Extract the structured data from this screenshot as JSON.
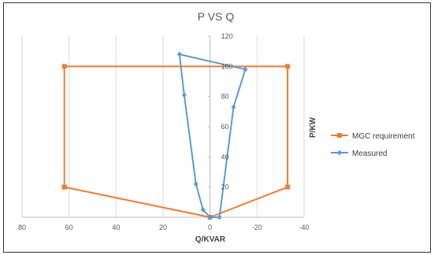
{
  "chart_data": {
    "type": "scatter",
    "title": "P VS Q",
    "xlabel": "Q/KVAR",
    "ylabel": "P/KW",
    "x_reversed": true,
    "xlim": [
      80,
      -40
    ],
    "ylim": [
      0,
      120
    ],
    "x_ticks": [
      80,
      60,
      40,
      20,
      0,
      -20,
      -40
    ],
    "y_ticks": [
      20,
      40,
      60,
      80,
      100,
      120
    ],
    "grid": "vertical",
    "legend_position": "right",
    "series": [
      {
        "name": "MGC requirement",
        "color": "#ED7D31",
        "marker": "square",
        "points": [
          [
            62,
            20
          ],
          [
            62,
            100
          ],
          [
            -33,
            100
          ],
          [
            -33,
            20
          ],
          [
            0,
            0
          ],
          [
            62,
            20
          ]
        ]
      },
      {
        "name": "Measured",
        "color": "#5B9BD5",
        "marker": "diamond",
        "points": [
          [
            -15,
            98
          ],
          [
            13,
            108
          ],
          [
            11,
            81
          ],
          [
            6,
            22
          ],
          [
            3,
            5
          ],
          [
            0,
            0
          ],
          [
            -4,
            0
          ],
          [
            -10,
            73
          ],
          [
            -15,
            98
          ]
        ]
      }
    ]
  }
}
